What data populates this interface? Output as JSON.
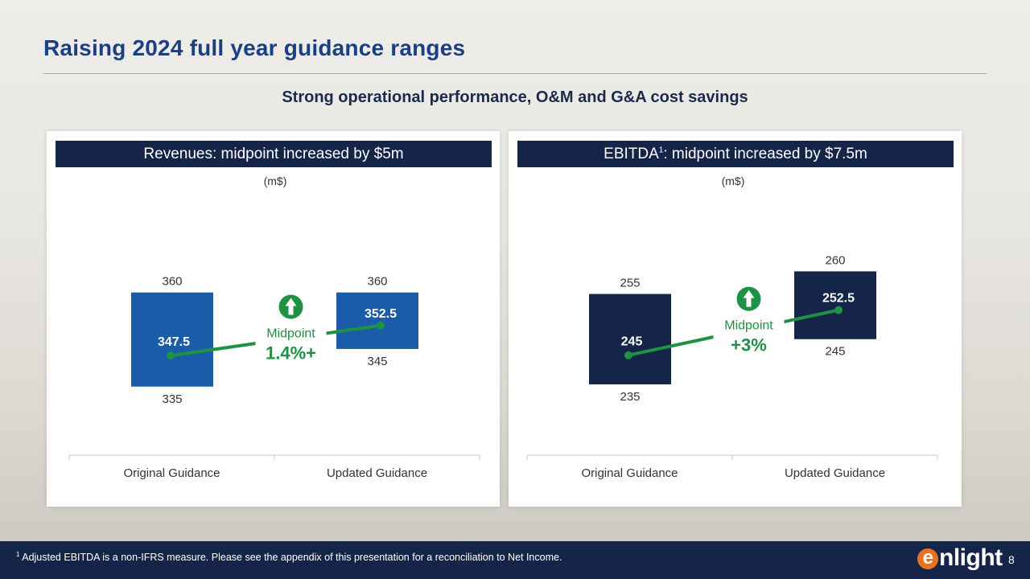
{
  "title": "Raising 2024 full year guidance ranges",
  "subtitle": "Strong operational performance, O&M and G&A cost savings",
  "colors": {
    "title": "#1a3f82",
    "navy": "#15254a",
    "revenue_bar": "#1a5ca8",
    "ebitda_bar": "#15254a",
    "green": "#1f9145"
  },
  "chart_data": [
    {
      "type": "bar",
      "title": "Revenues: midpoint increased by $5m",
      "unit_label": "(m$)",
      "categories": [
        "Original Guidance",
        "Updated Guidance"
      ],
      "series": [
        {
          "name": "low",
          "values": [
            335,
            345
          ]
        },
        {
          "name": "high",
          "values": [
            360,
            360
          ]
        },
        {
          "name": "midpoint",
          "values": [
            347.5,
            352.5
          ]
        }
      ],
      "low_labels": [
        "335",
        "345"
      ],
      "high_labels": [
        "360",
        "360"
      ],
      "mid_labels": [
        "347.5",
        "352.5"
      ],
      "ylim": [
        320,
        380
      ],
      "annotation": {
        "label": "Midpoint",
        "value": "1.4%+",
        "icon": "up-arrow-icon"
      }
    },
    {
      "type": "bar",
      "title_main": "EBITDA",
      "title_sup": "1",
      "title_rest": ": midpoint increased by $7.5m",
      "unit_label": "(m$)",
      "categories": [
        "Original Guidance",
        "Updated Guidance"
      ],
      "series": [
        {
          "name": "low",
          "values": [
            235,
            245
          ]
        },
        {
          "name": "high",
          "values": [
            255,
            260
          ]
        },
        {
          "name": "midpoint",
          "values": [
            245,
            252.5
          ]
        }
      ],
      "low_labels": [
        "235",
        "245"
      ],
      "high_labels": [
        "255",
        "260"
      ],
      "mid_labels": [
        "245",
        "252.5"
      ],
      "ylim": [
        222,
        272
      ],
      "annotation": {
        "label": "Midpoint",
        "value": "+3%",
        "icon": "up-arrow-icon"
      }
    }
  ],
  "footer": {
    "footnote_sup": "1",
    "footnote": " Adjusted EBITDA is a non-IFRS measure. Please see the appendix of this presentation for a reconciliation to Net Income.",
    "logo_e": "e",
    "logo_rest": "nlight",
    "page_number": "8"
  }
}
